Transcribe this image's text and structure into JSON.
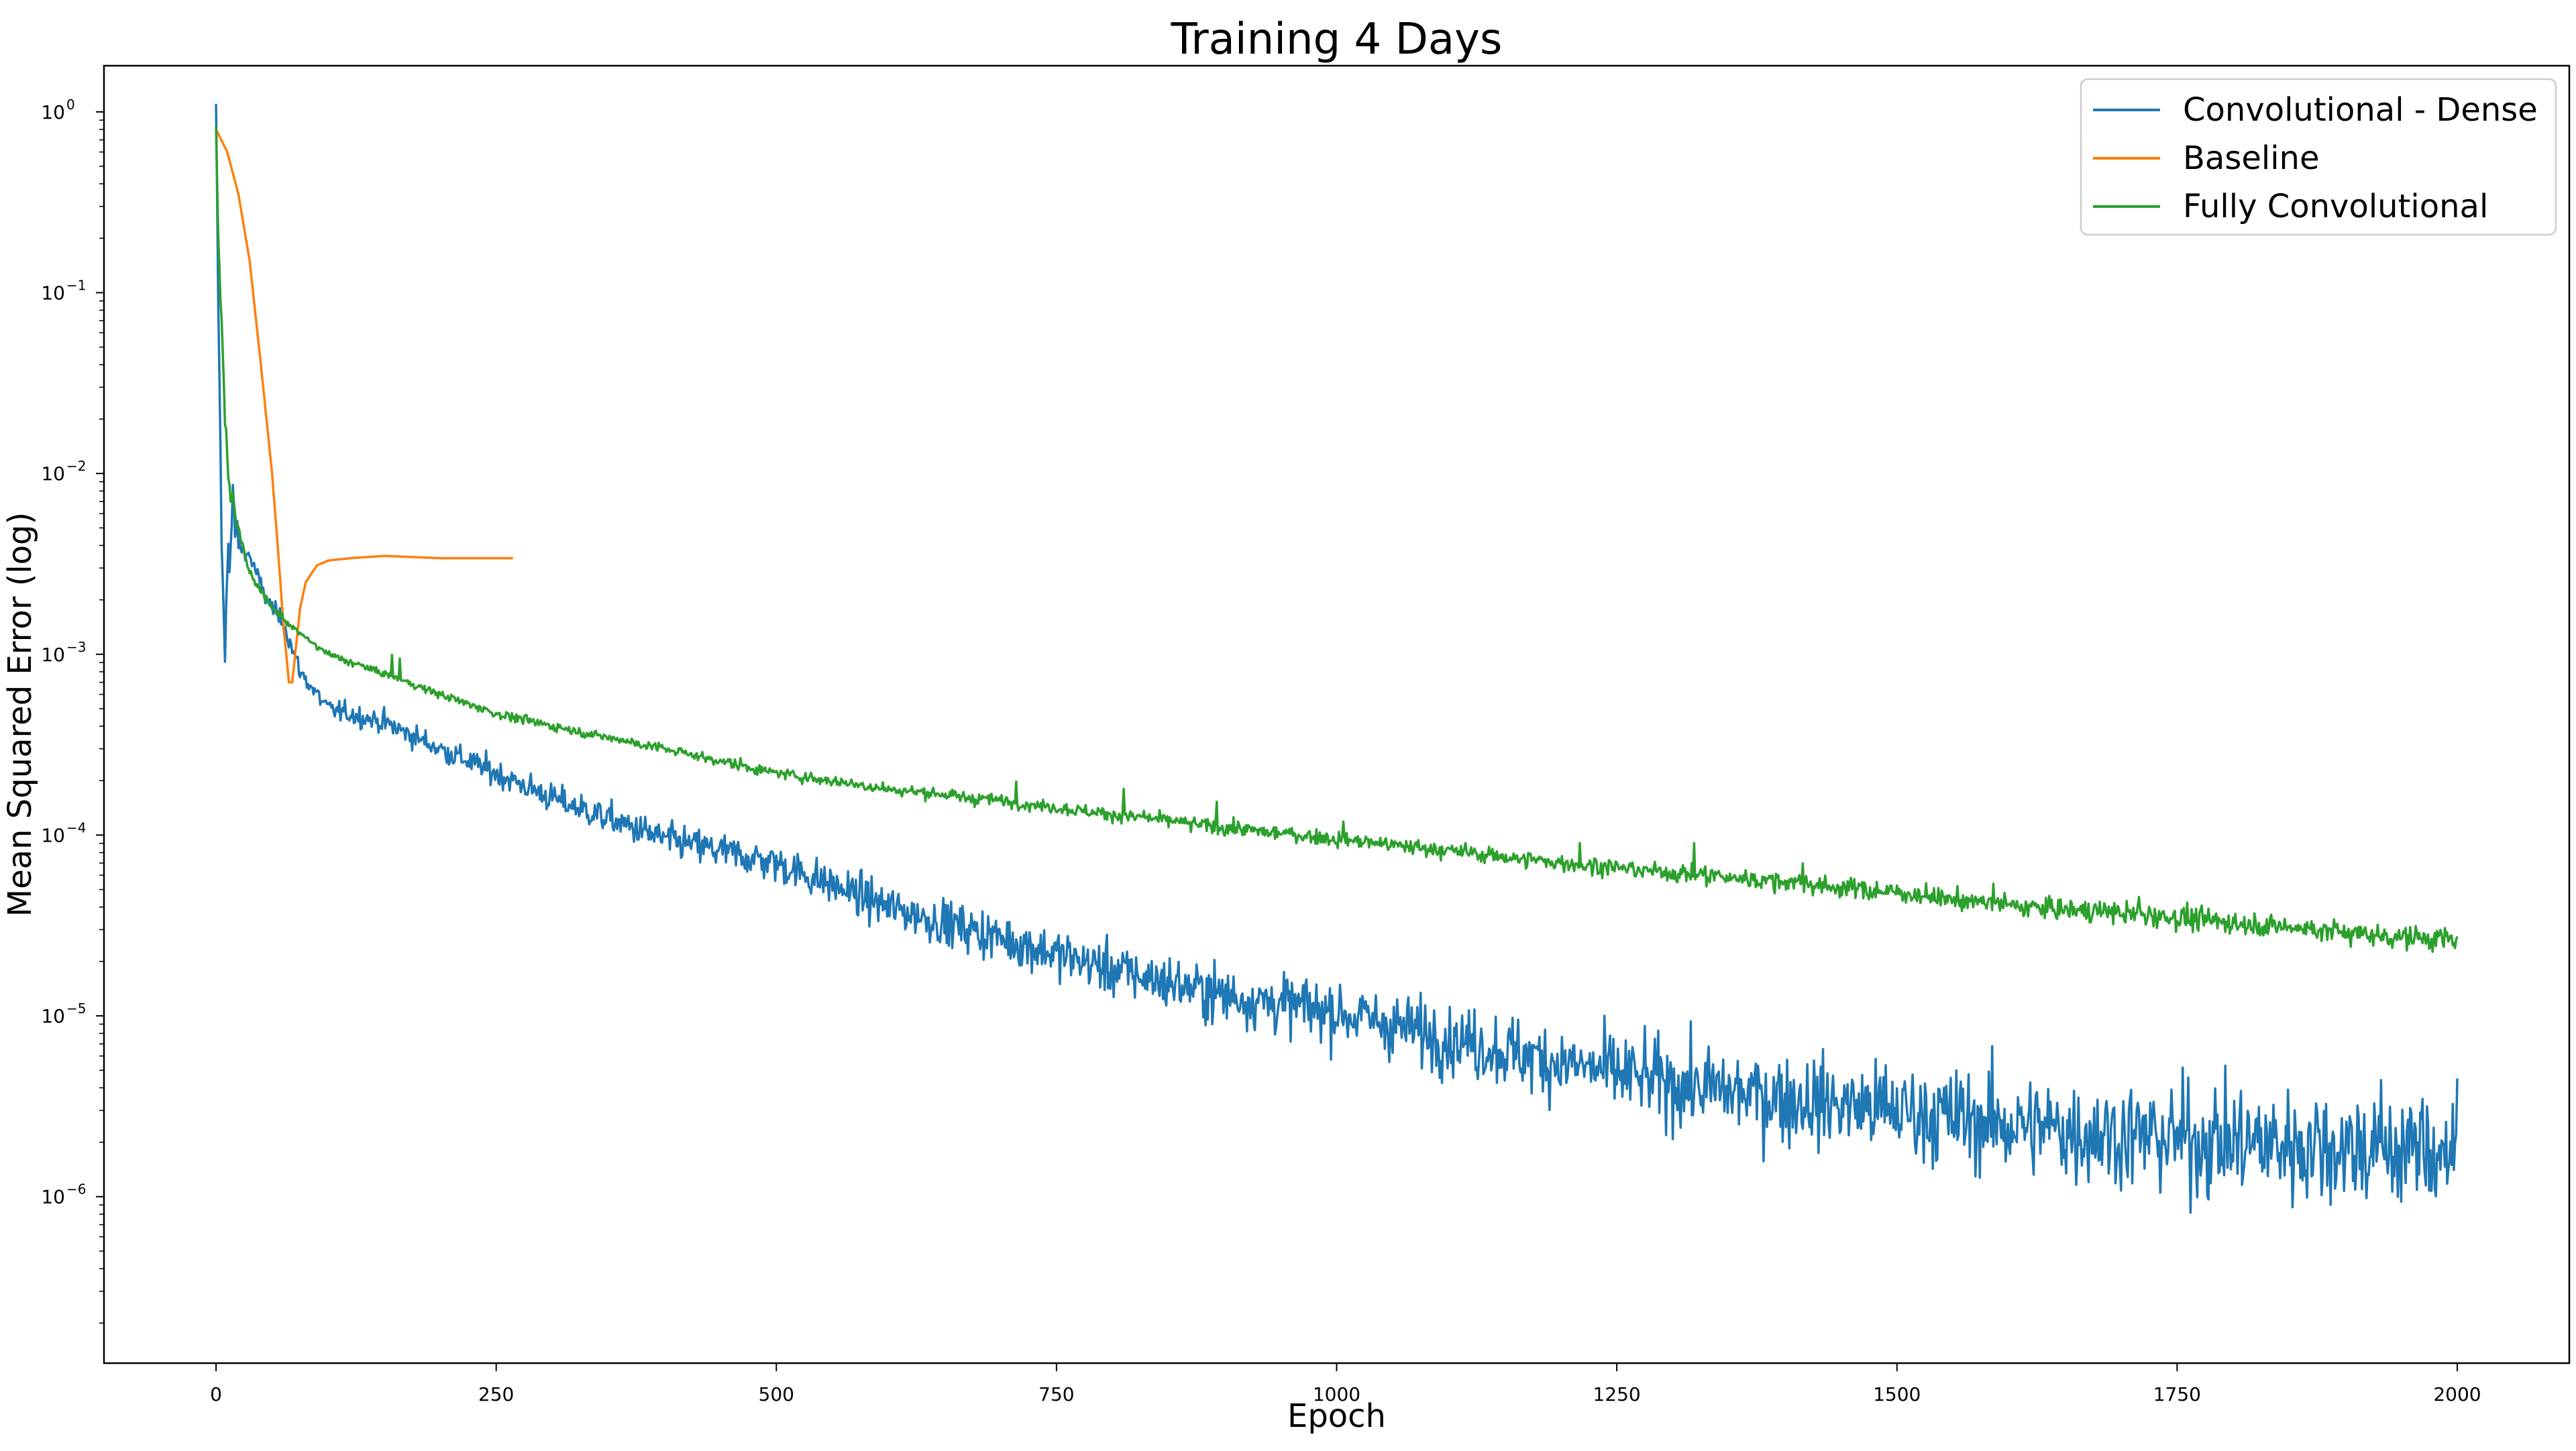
{
  "chart_data": {
    "type": "line",
    "title": "Training 4 Days",
    "xlabel": "Epoch",
    "ylabel": "Mean Squared Error (log)",
    "xlim": [
      -100,
      2100
    ],
    "ylim": [
      1.2e-07,
      1.8
    ],
    "yscale": "log",
    "xticks": [
      0,
      250,
      500,
      750,
      1000,
      1250,
      1500,
      1750,
      2000
    ],
    "xtick_labels": [
      "0",
      "250",
      "500",
      "750",
      "1000",
      "1250",
      "1500",
      "1750",
      "2000"
    ],
    "yticks": [
      1,
      0.1,
      0.01,
      0.001,
      0.0001,
      1e-05,
      1e-06
    ],
    "ytick_labels": [
      {
        "base": "10",
        "exp": "0"
      },
      {
        "base": "10",
        "exp": "−1"
      },
      {
        "base": "10",
        "exp": "−2"
      },
      {
        "base": "10",
        "exp": "−3"
      },
      {
        "base": "10",
        "exp": "−4"
      },
      {
        "base": "10",
        "exp": "−5"
      },
      {
        "base": "10",
        "exp": "−6"
      }
    ],
    "grid": false,
    "legend_position": "top-right",
    "series": [
      {
        "name": "Convolutional - Dense",
        "color": "#1f77b4",
        "noise": "high",
        "x": [
          0,
          3,
          6,
          8,
          10,
          12,
          15,
          20,
          30,
          45,
          60,
          75,
          90,
          100,
          150,
          200,
          250,
          300,
          400,
          500,
          600,
          700,
          800,
          900,
          1000,
          1100,
          1200,
          1300,
          1400,
          1500,
          1600,
          1700,
          1800,
          1900,
          2000
        ],
        "y": [
          0.8,
          0.03,
          0.002,
          0.001,
          0.0045,
          0.003,
          0.006,
          0.004,
          0.0035,
          0.002,
          0.0015,
          0.0008,
          0.0006,
          0.0005,
          0.00042,
          0.0003,
          0.00022,
          0.00016,
          9.5e-05,
          7e-05,
          4e-05,
          2.7e-05,
          1.8e-05,
          1.3e-05,
          1.05e-05,
          7.5e-06,
          5.5e-06,
          4.2e-06,
          3.5e-06,
          3e-06,
          2.5e-06,
          2.2e-06,
          2e-06,
          1.9e-06,
          1.8e-06
        ]
      },
      {
        "name": "Baseline",
        "color": "#ff7f0e",
        "noise": "none",
        "x": [
          0,
          10,
          20,
          30,
          40,
          50,
          55,
          60,
          65,
          68,
          72,
          75,
          80,
          90,
          100,
          120,
          150,
          200,
          265
        ],
        "y": [
          0.8,
          0.6,
          0.35,
          0.15,
          0.04,
          0.01,
          0.004,
          0.0015,
          0.0007,
          0.0007,
          0.0012,
          0.0018,
          0.0025,
          0.0031,
          0.0033,
          0.0034,
          0.0035,
          0.0034,
          0.0034
        ]
      },
      {
        "name": "Fully Convolutional",
        "color": "#2ca02c",
        "noise": "low",
        "x": [
          0,
          2,
          5,
          8,
          12,
          20,
          30,
          50,
          75,
          100,
          150,
          200,
          250,
          300,
          400,
          500,
          600,
          700,
          800,
          900,
          1000,
          1100,
          1200,
          1300,
          1400,
          1500,
          1600,
          1700,
          1800,
          1900,
          2000
        ],
        "y": [
          0.8,
          0.2,
          0.07,
          0.02,
          0.009,
          0.005,
          0.0028,
          0.0018,
          0.0013,
          0.001,
          0.00078,
          0.0006,
          0.00047,
          0.0004,
          0.0003,
          0.00022,
          0.00018,
          0.000155,
          0.00013,
          0.00011,
          9.5e-05,
          8.2e-05,
          7e-05,
          6.2e-05,
          5.5e-05,
          4.8e-05,
          4.1e-05,
          3.7e-05,
          3.3e-05,
          2.9e-05,
          2.6e-05
        ]
      }
    ]
  }
}
